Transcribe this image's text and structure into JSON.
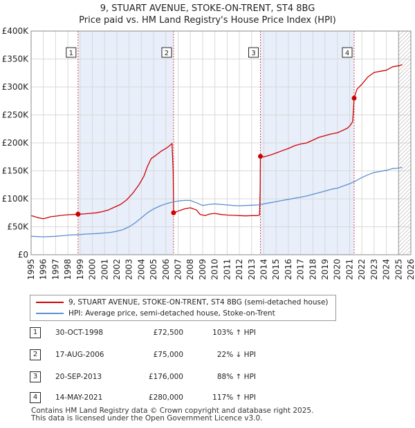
{
  "title_line1": "9, STUART AVENUE, STOKE-ON-TRENT, ST4 8BG",
  "title_line2": "Price paid vs. HM Land Registry's House Price Index (HPI)",
  "chart_data": {
    "type": "line",
    "title": "9, STUART AVENUE, STOKE-ON-TRENT, ST4 8BG — Price paid vs. HM Land Registry's House Price Index (HPI)",
    "xlim": [
      1995,
      2026
    ],
    "ylim": [
      0,
      400000
    ],
    "x_ticks": [
      1995,
      1996,
      1997,
      1998,
      1999,
      2000,
      2001,
      2002,
      2003,
      2004,
      2005,
      2006,
      2007,
      2008,
      2009,
      2010,
      2011,
      2012,
      2013,
      2014,
      2015,
      2016,
      2017,
      2018,
      2019,
      2020,
      2021,
      2022,
      2023,
      2024,
      2025,
      2026
    ],
    "y_ticks": [
      {
        "value": 0,
        "label": "£0"
      },
      {
        "value": 50000,
        "label": "£50K"
      },
      {
        "value": 100000,
        "label": "£100K"
      },
      {
        "value": 150000,
        "label": "£150K"
      },
      {
        "value": 200000,
        "label": "£200K"
      },
      {
        "value": 250000,
        "label": "£250K"
      },
      {
        "value": 300000,
        "label": "£300K"
      },
      {
        "value": 350000,
        "label": "£350K"
      },
      {
        "value": 400000,
        "label": "£400K"
      }
    ],
    "grid": true,
    "forecast_from": 2025.0,
    "colors": {
      "property": "#cc0000",
      "hpi": "#5b8fd0",
      "shade": "#e8eefa",
      "grid": "#d8d8d8"
    },
    "shaded_ranges": [
      [
        1998.83,
        2006.63
      ],
      [
        2013.72,
        2021.37
      ]
    ],
    "series": [
      {
        "name": "9, STUART AVENUE, STOKE-ON-TRENT, ST4 8BG (semi-detached house)",
        "color": "#cc0000",
        "points": [
          [
            1995.0,
            70000
          ],
          [
            1995.3,
            68000
          ],
          [
            1995.6,
            66000
          ],
          [
            1996.0,
            64500
          ],
          [
            1996.3,
            66000
          ],
          [
            1996.6,
            68000
          ],
          [
            1997.0,
            69000
          ],
          [
            1997.5,
            70500
          ],
          [
            1998.0,
            71500
          ],
          [
            1998.5,
            72000
          ],
          [
            1998.83,
            72500
          ],
          [
            1999.3,
            73000
          ],
          [
            1999.8,
            74000
          ],
          [
            2000.3,
            75000
          ],
          [
            2000.8,
            77000
          ],
          [
            2001.3,
            80000
          ],
          [
            2001.8,
            85000
          ],
          [
            2002.3,
            90000
          ],
          [
            2002.8,
            98000
          ],
          [
            2003.3,
            110000
          ],
          [
            2003.8,
            125000
          ],
          [
            2004.2,
            140000
          ],
          [
            2004.5,
            158000
          ],
          [
            2004.8,
            172000
          ],
          [
            2005.2,
            178000
          ],
          [
            2005.6,
            185000
          ],
          [
            2006.0,
            190000
          ],
          [
            2006.3,
            195000
          ],
          [
            2006.5,
            199000
          ],
          [
            2006.6,
            150000
          ],
          [
            2006.63,
            75000
          ],
          [
            2007.0,
            78000
          ],
          [
            2007.5,
            82000
          ],
          [
            2008.0,
            84000
          ],
          [
            2008.5,
            80000
          ],
          [
            2008.8,
            72000
          ],
          [
            2009.2,
            70000
          ],
          [
            2009.6,
            73000
          ],
          [
            2010.0,
            74000
          ],
          [
            2010.5,
            72000
          ],
          [
            2011.0,
            71000
          ],
          [
            2011.5,
            70500
          ],
          [
            2012.0,
            70000
          ],
          [
            2012.5,
            69500
          ],
          [
            2013.0,
            70000
          ],
          [
            2013.5,
            70000
          ],
          [
            2013.65,
            71000
          ],
          [
            2013.7,
            120000
          ],
          [
            2013.72,
            176000
          ],
          [
            2014.0,
            175000
          ],
          [
            2014.5,
            178000
          ],
          [
            2015.0,
            182000
          ],
          [
            2015.5,
            186000
          ],
          [
            2016.0,
            190000
          ],
          [
            2016.5,
            195000
          ],
          [
            2017.0,
            198000
          ],
          [
            2017.5,
            200000
          ],
          [
            2018.0,
            205000
          ],
          [
            2018.5,
            210000
          ],
          [
            2019.0,
            213000
          ],
          [
            2019.5,
            216000
          ],
          [
            2020.0,
            218000
          ],
          [
            2020.4,
            222000
          ],
          [
            2020.8,
            226000
          ],
          [
            2021.0,
            230000
          ],
          [
            2021.25,
            238000
          ],
          [
            2021.33,
            265000
          ],
          [
            2021.37,
            280000
          ],
          [
            2021.6,
            296000
          ],
          [
            2022.0,
            305000
          ],
          [
            2022.5,
            318000
          ],
          [
            2023.0,
            326000
          ],
          [
            2023.5,
            328000
          ],
          [
            2024.0,
            330000
          ],
          [
            2024.5,
            336000
          ],
          [
            2025.0,
            338000
          ],
          [
            2025.3,
            340000
          ]
        ]
      },
      {
        "name": "HPI: Average price, semi-detached house, Stoke-on-Trent",
        "color": "#5b8fd0",
        "points": [
          [
            1995.0,
            33000
          ],
          [
            1995.5,
            32500
          ],
          [
            1996.0,
            32000
          ],
          [
            1996.5,
            32500
          ],
          [
            1997.0,
            33000
          ],
          [
            1997.5,
            34000
          ],
          [
            1998.0,
            35000
          ],
          [
            1998.5,
            35500
          ],
          [
            1999.0,
            36000
          ],
          [
            1999.5,
            37000
          ],
          [
            2000.0,
            37500
          ],
          [
            2000.5,
            38000
          ],
          [
            2001.0,
            39000
          ],
          [
            2001.5,
            40000
          ],
          [
            2002.0,
            42000
          ],
          [
            2002.5,
            45000
          ],
          [
            2003.0,
            50000
          ],
          [
            2003.5,
            57000
          ],
          [
            2004.0,
            66000
          ],
          [
            2004.5,
            75000
          ],
          [
            2005.0,
            82000
          ],
          [
            2005.5,
            87000
          ],
          [
            2006.0,
            91000
          ],
          [
            2006.5,
            94000
          ],
          [
            2007.0,
            96000
          ],
          [
            2007.5,
            97000
          ],
          [
            2008.0,
            97000
          ],
          [
            2008.5,
            93000
          ],
          [
            2009.0,
            88000
          ],
          [
            2009.5,
            90000
          ],
          [
            2010.0,
            91000
          ],
          [
            2010.5,
            90000
          ],
          [
            2011.0,
            89000
          ],
          [
            2011.5,
            88000
          ],
          [
            2012.0,
            87500
          ],
          [
            2012.5,
            88000
          ],
          [
            2013.0,
            88500
          ],
          [
            2013.5,
            89000
          ],
          [
            2014.0,
            91000
          ],
          [
            2014.5,
            93000
          ],
          [
            2015.0,
            95000
          ],
          [
            2015.5,
            97000
          ],
          [
            2016.0,
            99000
          ],
          [
            2016.5,
            101000
          ],
          [
            2017.0,
            103000
          ],
          [
            2017.5,
            105000
          ],
          [
            2018.0,
            108000
          ],
          [
            2018.5,
            111000
          ],
          [
            2019.0,
            114000
          ],
          [
            2019.5,
            117000
          ],
          [
            2020.0,
            119000
          ],
          [
            2020.5,
            123000
          ],
          [
            2021.0,
            127000
          ],
          [
            2021.5,
            132000
          ],
          [
            2022.0,
            138000
          ],
          [
            2022.5,
            143000
          ],
          [
            2023.0,
            147000
          ],
          [
            2023.5,
            149000
          ],
          [
            2024.0,
            151000
          ],
          [
            2024.5,
            154000
          ],
          [
            2025.0,
            155000
          ],
          [
            2025.3,
            156000
          ]
        ]
      }
    ],
    "sale_points": [
      {
        "label": "1",
        "x": 1998.83,
        "y": 72500
      },
      {
        "label": "2",
        "x": 2006.63,
        "y": 75000
      },
      {
        "label": "3",
        "x": 2013.72,
        "y": 176000
      },
      {
        "label": "4",
        "x": 2021.37,
        "y": 280000
      }
    ]
  },
  "legend": {
    "property": "9, STUART AVENUE, STOKE-ON-TRENT, ST4 8BG (semi-detached house)",
    "hpi": "HPI: Average price, semi-detached house, Stoke-on-Trent"
  },
  "sales": [
    {
      "num": "1",
      "date": "30-OCT-1998",
      "price": "£72,500",
      "hpi": "103% ↑ HPI"
    },
    {
      "num": "2",
      "date": "17-AUG-2006",
      "price": "£75,000",
      "hpi": "22% ↓ HPI"
    },
    {
      "num": "3",
      "date": "20-SEP-2013",
      "price": "£176,000",
      "hpi": "88% ↑ HPI"
    },
    {
      "num": "4",
      "date": "14-MAY-2021",
      "price": "£280,000",
      "hpi": "117% ↑ HPI"
    }
  ],
  "footer_line1": "Contains HM Land Registry data © Crown copyright and database right 2025.",
  "footer_line2": "This data is licensed under the Open Government Licence v3.0."
}
